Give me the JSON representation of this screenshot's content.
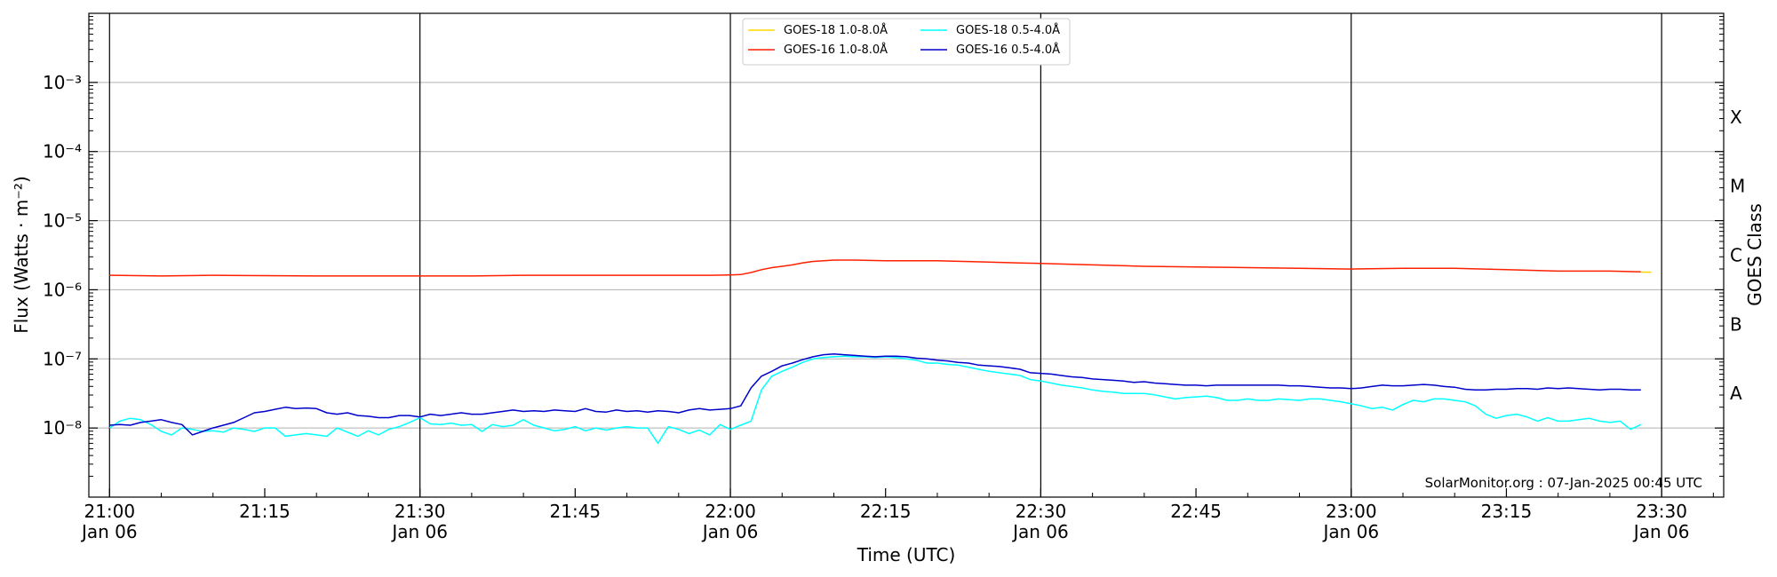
{
  "chart_data": {
    "type": "line",
    "xlabel": "Time (UTC)",
    "ylabel": "Flux (Watts · m⁻²)",
    "right_label": "GOES Class",
    "credit": "SolarMonitor.org : 07-Jan-2025 00:45 UTC",
    "x_unit": "minutes after 21:00 UTC, 06-Jan-2025",
    "xlim": [
      -2,
      156
    ],
    "ylim_log10": [
      -9,
      -2
    ],
    "y_scale": "log",
    "grid": "horizontal at each decade",
    "legend_position": "top-center",
    "x_ticks": [
      {
        "x": 0,
        "line1": "21:00",
        "line2": "Jan 06",
        "major": true
      },
      {
        "x": 15,
        "line1": "21:15",
        "line2": "",
        "major": false
      },
      {
        "x": 30,
        "line1": "21:30",
        "line2": "Jan 06",
        "major": true
      },
      {
        "x": 45,
        "line1": "21:45",
        "line2": "",
        "major": false
      },
      {
        "x": 60,
        "line1": "22:00",
        "line2": "Jan 06",
        "major": true
      },
      {
        "x": 75,
        "line1": "22:15",
        "line2": "",
        "major": false
      },
      {
        "x": 90,
        "line1": "22:30",
        "line2": "Jan 06",
        "major": true
      },
      {
        "x": 105,
        "line1": "22:45",
        "line2": "",
        "major": false
      },
      {
        "x": 120,
        "line1": "23:00",
        "line2": "Jan 06",
        "major": true
      },
      {
        "x": 135,
        "line1": "23:15",
        "line2": "",
        "major": false
      },
      {
        "x": 150,
        "line1": "23:30",
        "line2": "Jan 06",
        "major": true
      }
    ],
    "y_ticks": [
      {
        "exp": -8,
        "label": "10⁻⁸"
      },
      {
        "exp": -7,
        "label": "10⁻⁷"
      },
      {
        "exp": -6,
        "label": "10⁻⁶"
      },
      {
        "exp": -5,
        "label": "10⁻⁵"
      },
      {
        "exp": -4,
        "label": "10⁻⁴"
      },
      {
        "exp": -3,
        "label": "10⁻³"
      }
    ],
    "goes_classes": [
      {
        "label": "A",
        "log10": -7.5
      },
      {
        "label": "B",
        "log10": -6.5
      },
      {
        "label": "C",
        "log10": -5.5
      },
      {
        "label": "M",
        "log10": -4.5
      },
      {
        "label": "X",
        "log10": -3.5
      }
    ],
    "series": [
      {
        "name": "GOES-18 1.0-8.0Å",
        "color": "#FFD700",
        "x": [
          148,
          149
        ],
        "log10_flux": [
          -5.745,
          -5.745
        ]
      },
      {
        "name": "GOES-18 0.5-4.0Å",
        "color": "#00FFFF",
        "x": [
          0,
          1,
          2,
          3,
          4,
          5,
          6,
          7,
          8,
          9,
          10,
          11,
          12,
          13,
          14,
          15,
          16,
          17,
          18,
          19,
          20,
          21,
          22,
          23,
          24,
          25,
          26,
          27,
          28,
          29,
          30,
          31,
          32,
          33,
          34,
          35,
          36,
          37,
          38,
          39,
          40,
          41,
          42,
          43,
          44,
          45,
          46,
          47,
          48,
          49,
          50,
          51,
          52,
          53,
          54,
          55,
          56,
          57,
          58,
          59,
          60,
          61,
          62,
          63,
          64,
          65,
          66,
          67,
          68,
          69,
          70,
          71,
          72,
          73,
          74,
          75,
          76,
          77,
          78,
          79,
          80,
          81,
          82,
          83,
          84,
          85,
          86,
          87,
          88,
          89,
          90,
          91,
          92,
          93,
          94,
          95,
          96,
          97,
          98,
          99,
          100,
          101,
          102,
          103,
          104,
          105,
          106,
          107,
          108,
          109,
          110,
          111,
          112,
          113,
          114,
          115,
          116,
          117,
          118,
          119,
          120,
          121,
          122,
          123,
          124,
          125,
          126,
          127,
          128,
          129,
          130,
          131,
          132,
          133,
          134,
          135,
          136,
          137,
          138,
          139,
          140,
          141,
          142,
          143,
          144,
          145,
          146,
          147,
          148
        ],
        "log10_flux": [
          -8.0,
          -7.9,
          -7.86,
          -7.88,
          -7.95,
          -8.05,
          -8.1,
          -8.0,
          -8.02,
          -8.05,
          -8.04,
          -8.06,
          -8.0,
          -8.02,
          -8.05,
          -8.0,
          -8.0,
          -8.12,
          -8.1,
          -8.08,
          -8.1,
          -8.12,
          -8.0,
          -8.06,
          -8.12,
          -8.04,
          -8.1,
          -8.02,
          -7.98,
          -7.92,
          -7.85,
          -7.94,
          -7.95,
          -7.93,
          -7.96,
          -7.95,
          -8.05,
          -7.95,
          -7.98,
          -7.96,
          -7.88,
          -7.96,
          -8.0,
          -8.04,
          -8.02,
          -7.98,
          -8.04,
          -8.0,
          -8.03,
          -8.0,
          -7.98,
          -8.0,
          -8.0,
          -8.22,
          -7.98,
          -8.02,
          -8.08,
          -8.03,
          -8.1,
          -7.95,
          -8.02,
          -7.96,
          -7.9,
          -7.45,
          -7.25,
          -7.18,
          -7.12,
          -7.05,
          -7.0,
          -6.98,
          -6.97,
          -6.96,
          -6.97,
          -6.97,
          -6.98,
          -6.97,
          -6.98,
          -7.0,
          -7.02,
          -7.06,
          -7.06,
          -7.08,
          -7.09,
          -7.12,
          -7.15,
          -7.18,
          -7.2,
          -7.22,
          -7.24,
          -7.3,
          -7.32,
          -7.35,
          -7.38,
          -7.4,
          -7.42,
          -7.45,
          -7.47,
          -7.48,
          -7.5,
          -7.5,
          -7.5,
          -7.52,
          -7.55,
          -7.58,
          -7.56,
          -7.55,
          -7.54,
          -7.56,
          -7.6,
          -7.6,
          -7.58,
          -7.6,
          -7.6,
          -7.58,
          -7.59,
          -7.6,
          -7.58,
          -7.58,
          -7.6,
          -7.62,
          -7.65,
          -7.68,
          -7.72,
          -7.7,
          -7.74,
          -7.66,
          -7.6,
          -7.62,
          -7.58,
          -7.58,
          -7.6,
          -7.62,
          -7.68,
          -7.8,
          -7.86,
          -7.82,
          -7.8,
          -7.84,
          -7.9,
          -7.85,
          -7.9,
          -7.9,
          -7.88,
          -7.86,
          -7.9,
          -7.92,
          -7.9,
          -8.02,
          -7.95
        ]
      },
      {
        "name": "GOES-16 1.0-8.0Å",
        "color": "#FF2000",
        "x": [
          0,
          5,
          10,
          20,
          30,
          35,
          40,
          45,
          50,
          55,
          58,
          60,
          61,
          62,
          63,
          64,
          65,
          66,
          67,
          68,
          70,
          72,
          75,
          78,
          80,
          85,
          90,
          95,
          100,
          105,
          110,
          115,
          120,
          125,
          130,
          135,
          140,
          145,
          148
        ],
        "log10_flux": [
          -5.79,
          -5.8,
          -5.79,
          -5.8,
          -5.8,
          -5.8,
          -5.79,
          -5.79,
          -5.79,
          -5.79,
          -5.79,
          -5.785,
          -5.78,
          -5.75,
          -5.71,
          -5.68,
          -5.66,
          -5.64,
          -5.61,
          -5.59,
          -5.57,
          -5.57,
          -5.58,
          -5.58,
          -5.58,
          -5.6,
          -5.62,
          -5.64,
          -5.66,
          -5.67,
          -5.68,
          -5.69,
          -5.7,
          -5.69,
          -5.69,
          -5.71,
          -5.73,
          -5.73,
          -5.74
        ]
      },
      {
        "name": "GOES-16 0.5-4.0Å",
        "color": "#0000CC",
        "x": [
          0,
          1,
          2,
          3,
          4,
          5,
          6,
          7,
          8,
          9,
          10,
          11,
          12,
          13,
          14,
          15,
          16,
          17,
          18,
          19,
          20,
          21,
          22,
          23,
          24,
          25,
          26,
          27,
          28,
          29,
          30,
          31,
          32,
          33,
          34,
          35,
          36,
          37,
          38,
          39,
          40,
          41,
          42,
          43,
          44,
          45,
          46,
          47,
          48,
          49,
          50,
          51,
          52,
          53,
          54,
          55,
          56,
          57,
          58,
          59,
          60,
          61,
          62,
          63,
          64,
          65,
          66,
          67,
          68,
          69,
          70,
          71,
          72,
          73,
          74,
          75,
          76,
          77,
          78,
          79,
          80,
          81,
          82,
          83,
          84,
          85,
          86,
          87,
          88,
          89,
          90,
          91,
          92,
          93,
          94,
          95,
          96,
          97,
          98,
          99,
          100,
          101,
          102,
          103,
          104,
          105,
          106,
          107,
          108,
          109,
          110,
          111,
          112,
          113,
          114,
          115,
          116,
          117,
          118,
          119,
          120,
          121,
          122,
          123,
          124,
          125,
          126,
          127,
          128,
          129,
          130,
          131,
          132,
          133,
          134,
          135,
          136,
          137,
          138,
          139,
          140,
          141,
          142,
          143,
          144,
          145,
          146,
          147,
          148
        ],
        "log10_flux": [
          -7.96,
          -7.95,
          -7.96,
          -7.92,
          -7.9,
          -7.88,
          -7.92,
          -7.95,
          -8.1,
          -8.05,
          -8.0,
          -7.96,
          -7.92,
          -7.85,
          -7.78,
          -7.76,
          -7.73,
          -7.7,
          -7.72,
          -7.71,
          -7.72,
          -7.78,
          -7.8,
          -7.78,
          -7.82,
          -7.83,
          -7.85,
          -7.85,
          -7.82,
          -7.82,
          -7.84,
          -7.8,
          -7.82,
          -7.8,
          -7.78,
          -7.8,
          -7.8,
          -7.78,
          -7.76,
          -7.74,
          -7.76,
          -7.75,
          -7.76,
          -7.74,
          -7.75,
          -7.76,
          -7.72,
          -7.76,
          -7.77,
          -7.74,
          -7.76,
          -7.75,
          -7.77,
          -7.75,
          -7.76,
          -7.78,
          -7.74,
          -7.72,
          -7.74,
          -7.73,
          -7.72,
          -7.68,
          -7.42,
          -7.25,
          -7.18,
          -7.1,
          -7.06,
          -7.01,
          -6.97,
          -6.94,
          -6.93,
          -6.94,
          -6.95,
          -6.96,
          -6.97,
          -6.96,
          -6.96,
          -6.97,
          -6.99,
          -7.0,
          -7.02,
          -7.03,
          -7.05,
          -7.06,
          -7.09,
          -7.1,
          -7.11,
          -7.13,
          -7.15,
          -7.2,
          -7.21,
          -7.22,
          -7.24,
          -7.26,
          -7.27,
          -7.29,
          -7.3,
          -7.31,
          -7.32,
          -7.34,
          -7.33,
          -7.35,
          -7.36,
          -7.37,
          -7.38,
          -7.38,
          -7.39,
          -7.38,
          -7.38,
          -7.38,
          -7.38,
          -7.38,
          -7.38,
          -7.38,
          -7.39,
          -7.39,
          -7.4,
          -7.41,
          -7.42,
          -7.42,
          -7.43,
          -7.42,
          -7.4,
          -7.38,
          -7.39,
          -7.39,
          -7.38,
          -7.37,
          -7.38,
          -7.4,
          -7.41,
          -7.44,
          -7.45,
          -7.45,
          -7.44,
          -7.44,
          -7.43,
          -7.43,
          -7.44,
          -7.42,
          -7.43,
          -7.42,
          -7.43,
          -7.44,
          -7.45,
          -7.44,
          -7.44,
          -7.45,
          -7.45
        ]
      }
    ],
    "legend_order": [
      "GOES-18 1.0-8.0Å",
      "GOES-16 1.0-8.0Å",
      "GOES-18 0.5-4.0Å",
      "GOES-16 0.5-4.0Å"
    ]
  }
}
